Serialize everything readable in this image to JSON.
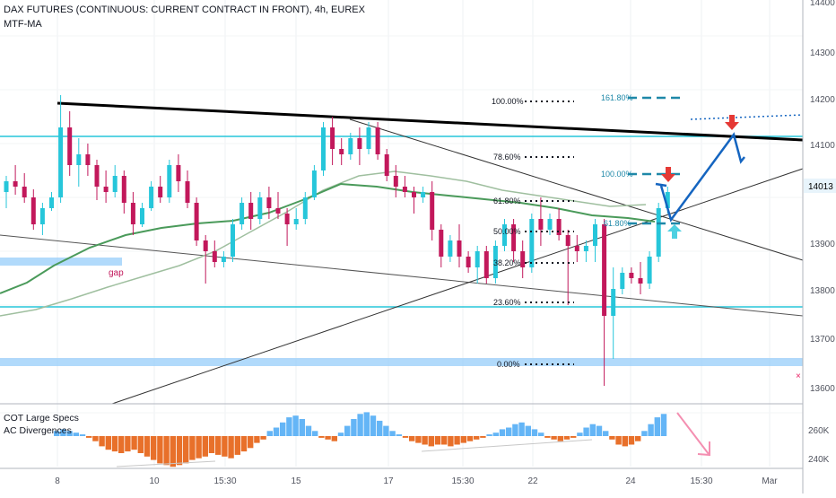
{
  "header": {
    "title": "DAX FUTURES (CONTINUOUS: CURRENT CONTRACT IN FRONT), 4h, EUREX",
    "indicator": "MTF-MA"
  },
  "indicator_panel": {
    "line1": "COT Large Specs",
    "line2": "AC Divergences"
  },
  "colors": {
    "up": "#26c6da",
    "down": "#c2185b",
    "ma_slow": "#9fbf9f",
    "ma_fast": "#4a9a5a",
    "hline": "#26c6da",
    "zone": "#90caf9",
    "trend": "#000000",
    "proj": "#1565c0",
    "hist_pos": "#64b5f6",
    "hist_neg": "#e8702a",
    "red_arrow": "#e53935",
    "cyan_arrow": "#4dd0e1"
  },
  "chart_data": {
    "type": "candlestick",
    "timeframe": "4h",
    "symbol": "DAX FUTURES",
    "price_axis": {
      "ticks": [
        "14400",
        "14300",
        "14200",
        "14100",
        "14013",
        "13900",
        "13800",
        "13700",
        "13600"
      ],
      "ylim": [
        13575,
        14400
      ]
    },
    "time_axis": {
      "ticks": [
        "8",
        "10",
        "15:30",
        "15",
        "17",
        "15:30",
        "22",
        "24",
        "15:30",
        "Mar"
      ]
    },
    "last_price": "14013",
    "candles": [
      [
        14010,
        14040,
        13980,
        14030
      ],
      [
        14030,
        14060,
        14005,
        14020
      ],
      [
        14020,
        14045,
        13990,
        14000
      ],
      [
        14000,
        14015,
        13940,
        13950
      ],
      [
        13950,
        13990,
        13930,
        13980
      ],
      [
        13980,
        14010,
        13975,
        14000
      ],
      [
        14000,
        14190,
        13990,
        14130
      ],
      [
        14130,
        14160,
        14040,
        14060
      ],
      [
        14060,
        14110,
        14020,
        14080
      ],
      [
        14080,
        14100,
        14040,
        14060
      ],
      [
        14060,
        14070,
        13995,
        14020
      ],
      [
        14020,
        14050,
        13990,
        14010
      ],
      [
        14010,
        14060,
        14000,
        14040
      ],
      [
        14040,
        14050,
        13970,
        13990
      ],
      [
        13990,
        14010,
        13930,
        13950
      ],
      [
        13950,
        13990,
        13945,
        13980
      ],
      [
        13980,
        14030,
        13975,
        14020
      ],
      [
        14020,
        14040,
        13990,
        14000
      ],
      [
        14000,
        14070,
        13990,
        14060
      ],
      [
        14060,
        14080,
        14010,
        14030
      ],
      [
        14030,
        14050,
        13980,
        13990
      ],
      [
        13990,
        14000,
        13910,
        13920
      ],
      [
        13920,
        13930,
        13840,
        13900
      ],
      [
        13900,
        13920,
        13870,
        13880
      ],
      [
        13880,
        13900,
        13870,
        13890
      ],
      [
        13890,
        13960,
        13880,
        13950
      ],
      [
        13950,
        14000,
        13940,
        13990
      ],
      [
        13990,
        14010,
        13940,
        13960
      ],
      [
        13960,
        14010,
        13950,
        14000
      ],
      [
        14000,
        14020,
        13960,
        13980
      ],
      [
        13980,
        14010,
        13960,
        13970
      ],
      [
        13970,
        13980,
        13910,
        13950
      ],
      [
        13950,
        13980,
        13940,
        13960
      ],
      [
        13960,
        14010,
        13950,
        14000
      ],
      [
        14000,
        14060,
        13995,
        14050
      ],
      [
        14050,
        14140,
        14040,
        14130
      ],
      [
        14130,
        14150,
        14060,
        14090
      ],
      [
        14090,
        14110,
        14060,
        14080
      ],
      [
        14080,
        14120,
        14070,
        14110
      ],
      [
        14110,
        14130,
        14060,
        14090
      ],
      [
        14090,
        14140,
        14080,
        14130
      ],
      [
        14130,
        14140,
        14070,
        14080
      ],
      [
        14080,
        14090,
        14030,
        14040
      ],
      [
        14040,
        14060,
        14000,
        14020
      ],
      [
        14020,
        14040,
        14000,
        14010
      ],
      [
        14010,
        14020,
        13970,
        14000
      ],
      [
        14000,
        14020,
        13990,
        14010
      ],
      [
        14010,
        14030,
        13920,
        13940
      ],
      [
        13940,
        13950,
        13870,
        13890
      ],
      [
        13890,
        13930,
        13880,
        13920
      ],
      [
        13920,
        13950,
        13870,
        13890
      ],
      [
        13890,
        13900,
        13860,
        13870
      ],
      [
        13870,
        13910,
        13840,
        13900
      ],
      [
        13900,
        13910,
        13840,
        13850
      ],
      [
        13850,
        13920,
        13840,
        13910
      ],
      [
        13910,
        13960,
        13900,
        13950
      ],
      [
        13950,
        13960,
        13880,
        13900
      ],
      [
        13900,
        13920,
        13850,
        13870
      ],
      [
        13870,
        13970,
        13860,
        13960
      ],
      [
        13960,
        14000,
        13910,
        13940
      ],
      [
        13940,
        13970,
        13930,
        13960
      ],
      [
        13960,
        13980,
        13920,
        13930
      ],
      [
        13930,
        13940,
        13800,
        13910
      ],
      [
        13910,
        13930,
        13880,
        13900
      ],
      [
        13900,
        13920,
        13880,
        13910
      ],
      [
        13910,
        13960,
        13880,
        13950
      ],
      [
        13950,
        13960,
        13650,
        13780
      ],
      [
        13780,
        13870,
        13700,
        13830
      ],
      [
        13830,
        13870,
        13820,
        13860
      ],
      [
        13860,
        13870,
        13840,
        13850
      ],
      [
        13850,
        13880,
        13820,
        13840
      ],
      [
        13840,
        13900,
        13830,
        13890
      ],
      [
        13890,
        13990,
        13880,
        13980
      ],
      [
        13980,
        14020,
        13970,
        14010
      ]
    ],
    "fibonacci": [
      {
        "label": "161.80%",
        "price": 14200
      },
      {
        "label": "100.00%",
        "price": 14200
      },
      {
        "label": "100.00%",
        "price": 14050
      },
      {
        "label": "78.60%",
        "price": 14060
      },
      {
        "label": "61.80%",
        "price": 13985
      },
      {
        "label": "61.80%",
        "price": 13940
      },
      {
        "label": "50.00%",
        "price": 13930
      },
      {
        "label": "38.20%",
        "price": 13875
      },
      {
        "label": "23.60%",
        "price": 13780
      },
      {
        "label": "0.00%",
        "price": 13650
      }
    ],
    "annotations": {
      "gap": "gap",
      "marker": "×"
    },
    "indicator_axis": {
      "ticks": [
        "260K",
        "240K"
      ]
    },
    "histogram": [
      3,
      4,
      3,
      2,
      1,
      -1,
      -3,
      -6,
      -8,
      -9,
      -10,
      -9,
      -8,
      -10,
      -12,
      -14,
      -16,
      -17,
      -18,
      -17,
      -16,
      -14,
      -13,
      -12,
      -10,
      -11,
      -12,
      -13,
      -11,
      -9,
      -7,
      -4,
      -2,
      3,
      5,
      8,
      11,
      12,
      10,
      6,
      3,
      -1,
      -2,
      -3,
      2,
      6,
      10,
      13,
      14,
      12,
      9,
      6,
      3,
      1,
      -1,
      -3,
      -4,
      -5,
      -6,
      -5,
      -5,
      -6,
      -5,
      -4,
      -3,
      -2,
      -1,
      1,
      2,
      4,
      5,
      7,
      8,
      6,
      4,
      2,
      -1,
      -2,
      -3,
      -2,
      -1,
      2,
      5,
      7,
      6,
      3,
      -2,
      -5,
      -6,
      -5,
      -3,
      3,
      7,
      11,
      13
    ]
  }
}
